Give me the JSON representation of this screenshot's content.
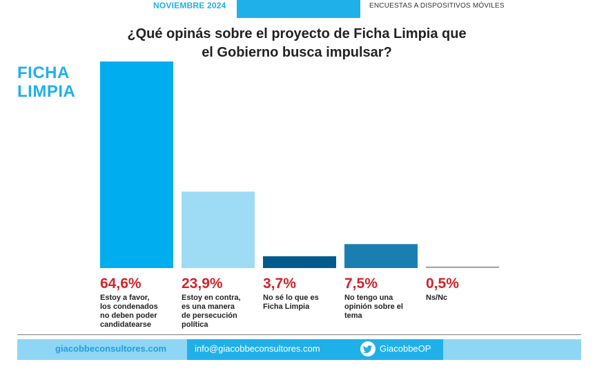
{
  "header": {
    "date": "NOVIEMBRE 2024",
    "survey_type": "ENCUESTAS A DISPOSITIVOS MÓVILES"
  },
  "brand": {
    "line1": "FICHA",
    "line2": "LIMPIA"
  },
  "chart_data": {
    "type": "bar",
    "title": "¿Qué opinás sobre el proyecto de Ficha Limpia que el Gobierno busca impulsar?",
    "title_lines": [
      "¿Qué opinás sobre el proyecto de Ficha Limpia que",
      "el Gobierno busca impulsar?"
    ],
    "categories": [
      "Estoy a favor, los condenados no deben poder candidatearse",
      "Estoy en contra, es una manera de persecución política",
      "No sé lo que es Ficha Limpia",
      "No tengo una opinión sobre el tema",
      "Ns/Nc"
    ],
    "category_lines": [
      [
        "Estoy a favor,",
        "los condenados",
        "no deben poder",
        "candidatearse"
      ],
      [
        "Estoy en contra,",
        "es una manera",
        "de persecución",
        "política"
      ],
      [
        "No sé lo que es",
        "Ficha Limpia"
      ],
      [
        "No tengo una",
        "opinión sobre el",
        "tema"
      ],
      [
        "Ns/Nc"
      ]
    ],
    "values": [
      64.6,
      23.9,
      3.7,
      7.5,
      0.5
    ],
    "value_labels": [
      "64,6%",
      "23,9%",
      "3,7%",
      "7,5%",
      "0,5%"
    ],
    "unit": "%",
    "ylim": [
      0,
      64.6
    ],
    "grid": false,
    "colors": [
      "#00adef",
      "#9edbf5",
      "#005a8b",
      "#1a7fb0",
      "#a6a9ad"
    ],
    "value_color": "#d2232a"
  },
  "footer": {
    "website": "giacobbeconsultores.com",
    "email": "info@giacobbeconsultores.com",
    "twitter": "GiacobbeOP"
  }
}
